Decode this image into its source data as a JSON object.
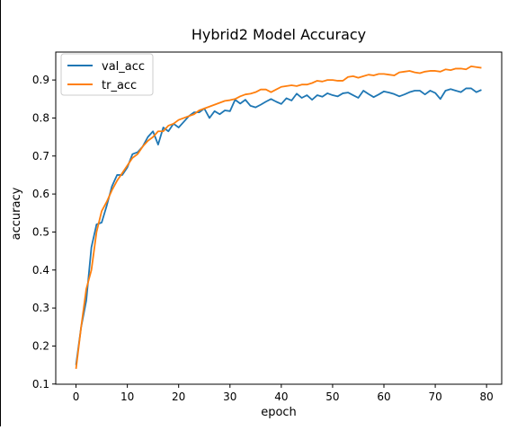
{
  "chart_data": {
    "type": "line",
    "title": "Hybrid2 Model Accuracy",
    "xlabel": "epoch",
    "ylabel": "accuracy",
    "xlim": [
      -3.95,
      82.95
    ],
    "ylim": [
      0.0995,
      0.9735
    ],
    "xticks": [
      0,
      10,
      20,
      30,
      40,
      50,
      60,
      70,
      80
    ],
    "yticks": [
      0.1,
      0.2,
      0.3,
      0.4,
      0.5,
      0.6,
      0.7,
      0.8,
      0.9
    ],
    "ytick_labels": [
      "0.1",
      "0.2",
      "0.3",
      "0.4",
      "0.5",
      "0.6",
      "0.7",
      "0.8",
      "0.9"
    ],
    "grid": false,
    "legend": "upper left",
    "series": [
      {
        "name": "val_acc",
        "color": "#1f77b4",
        "x": [
          0,
          1,
          2,
          3,
          4,
          5,
          6,
          7,
          8,
          9,
          10,
          11,
          12,
          13,
          14,
          15,
          16,
          17,
          18,
          19,
          20,
          21,
          22,
          23,
          24,
          25,
          26,
          27,
          28,
          29,
          30,
          31,
          32,
          33,
          34,
          35,
          36,
          37,
          38,
          39,
          40,
          41,
          42,
          43,
          44,
          45,
          46,
          47,
          48,
          49,
          50,
          51,
          52,
          53,
          54,
          55,
          56,
          57,
          58,
          59,
          60,
          61,
          62,
          63,
          64,
          65,
          66,
          67,
          68,
          69,
          70,
          71,
          72,
          73,
          74,
          75,
          76,
          77,
          78,
          79
        ],
        "values": [
          0.15,
          0.25,
          0.32,
          0.46,
          0.52,
          0.525,
          0.57,
          0.62,
          0.65,
          0.65,
          0.67,
          0.705,
          0.71,
          0.725,
          0.75,
          0.765,
          0.73,
          0.775,
          0.765,
          0.785,
          0.775,
          0.79,
          0.805,
          0.815,
          0.815,
          0.825,
          0.8,
          0.818,
          0.81,
          0.82,
          0.818,
          0.848,
          0.838,
          0.848,
          0.832,
          0.828,
          0.835,
          0.843,
          0.85,
          0.843,
          0.837,
          0.852,
          0.846,
          0.864,
          0.853,
          0.86,
          0.848,
          0.86,
          0.856,
          0.865,
          0.86,
          0.857,
          0.865,
          0.867,
          0.86,
          0.853,
          0.872,
          0.863,
          0.855,
          0.862,
          0.87,
          0.867,
          0.863,
          0.857,
          0.862,
          0.868,
          0.872,
          0.872,
          0.862,
          0.872,
          0.866,
          0.85,
          0.872,
          0.876,
          0.872,
          0.868,
          0.878,
          0.878,
          0.868,
          0.874
        ]
      },
      {
        "name": "tr_acc",
        "color": "#ff7f0e",
        "x": [
          0,
          1,
          2,
          3,
          4,
          5,
          6,
          7,
          8,
          9,
          10,
          11,
          12,
          13,
          14,
          15,
          16,
          17,
          18,
          19,
          20,
          21,
          22,
          23,
          24,
          25,
          26,
          27,
          28,
          29,
          30,
          31,
          32,
          33,
          34,
          35,
          36,
          37,
          38,
          39,
          40,
          41,
          42,
          43,
          44,
          45,
          46,
          47,
          48,
          49,
          50,
          51,
          52,
          53,
          54,
          55,
          56,
          57,
          58,
          59,
          60,
          61,
          62,
          63,
          64,
          65,
          66,
          67,
          68,
          69,
          70,
          71,
          72,
          73,
          74,
          75,
          76,
          77,
          78,
          79
        ],
        "values": [
          0.14,
          0.25,
          0.35,
          0.4,
          0.5,
          0.555,
          0.58,
          0.61,
          0.635,
          0.655,
          0.675,
          0.695,
          0.705,
          0.725,
          0.74,
          0.75,
          0.765,
          0.765,
          0.78,
          0.785,
          0.795,
          0.8,
          0.805,
          0.81,
          0.82,
          0.825,
          0.83,
          0.835,
          0.84,
          0.845,
          0.847,
          0.85,
          0.857,
          0.862,
          0.864,
          0.868,
          0.875,
          0.875,
          0.868,
          0.875,
          0.882,
          0.884,
          0.886,
          0.884,
          0.888,
          0.888,
          0.892,
          0.898,
          0.896,
          0.9,
          0.9,
          0.898,
          0.898,
          0.908,
          0.91,
          0.906,
          0.91,
          0.914,
          0.912,
          0.916,
          0.916,
          0.914,
          0.912,
          0.92,
          0.922,
          0.924,
          0.92,
          0.918,
          0.922,
          0.924,
          0.924,
          0.922,
          0.928,
          0.926,
          0.93,
          0.93,
          0.928,
          0.936,
          0.934,
          0.932
        ]
      }
    ]
  }
}
